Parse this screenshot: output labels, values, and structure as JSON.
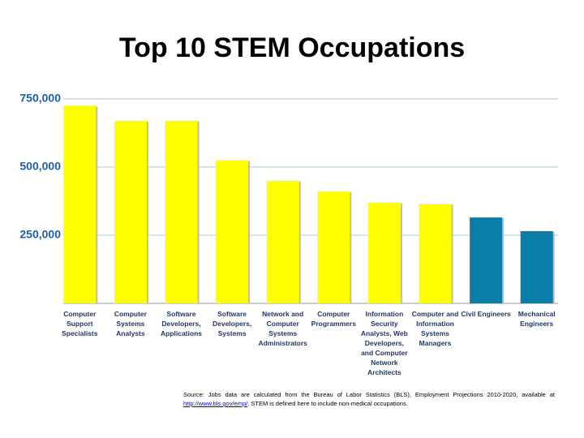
{
  "chart_data": {
    "type": "bar",
    "title": "Top 10 STEM Occupations",
    "categories": [
      "Computer Support Specialists",
      "Computer Systems Analysts",
      "Software Developers, Applications",
      "Software Developers, Systems",
      "Network and Computer Systems Administrators",
      "Computer Programmers",
      "Information Security Analysts, Web Developers, and Computer Network Architects",
      "Computer and Information Systems Managers",
      "Civil Engineers",
      "Mechanical Engineers"
    ],
    "values": [
      725000,
      670000,
      670000,
      525000,
      450000,
      410000,
      370000,
      365000,
      315000,
      265000
    ],
    "colors": [
      "#ffff00",
      "#ffff00",
      "#ffff00",
      "#ffff00",
      "#ffff00",
      "#ffff00",
      "#ffff00",
      "#ffff00",
      "#0a7ea8",
      "#0a7ea8"
    ],
    "ylim": [
      0,
      800000
    ],
    "yticks": [
      {
        "value": 250000,
        "label": "250,000"
      },
      {
        "value": 500000,
        "label": "500,000"
      },
      {
        "value": 750000,
        "label": "750,000"
      }
    ],
    "grid": true,
    "source": {
      "prefix": "Source: Jobs data are calculated from the Bureau of Labor Statistics (BLS), Employment Projections 2010-2020, available at",
      "link": "http://www.bls.gov/emp/",
      "suffix": ". STEM is defined here to include non-medical occupations."
    }
  }
}
